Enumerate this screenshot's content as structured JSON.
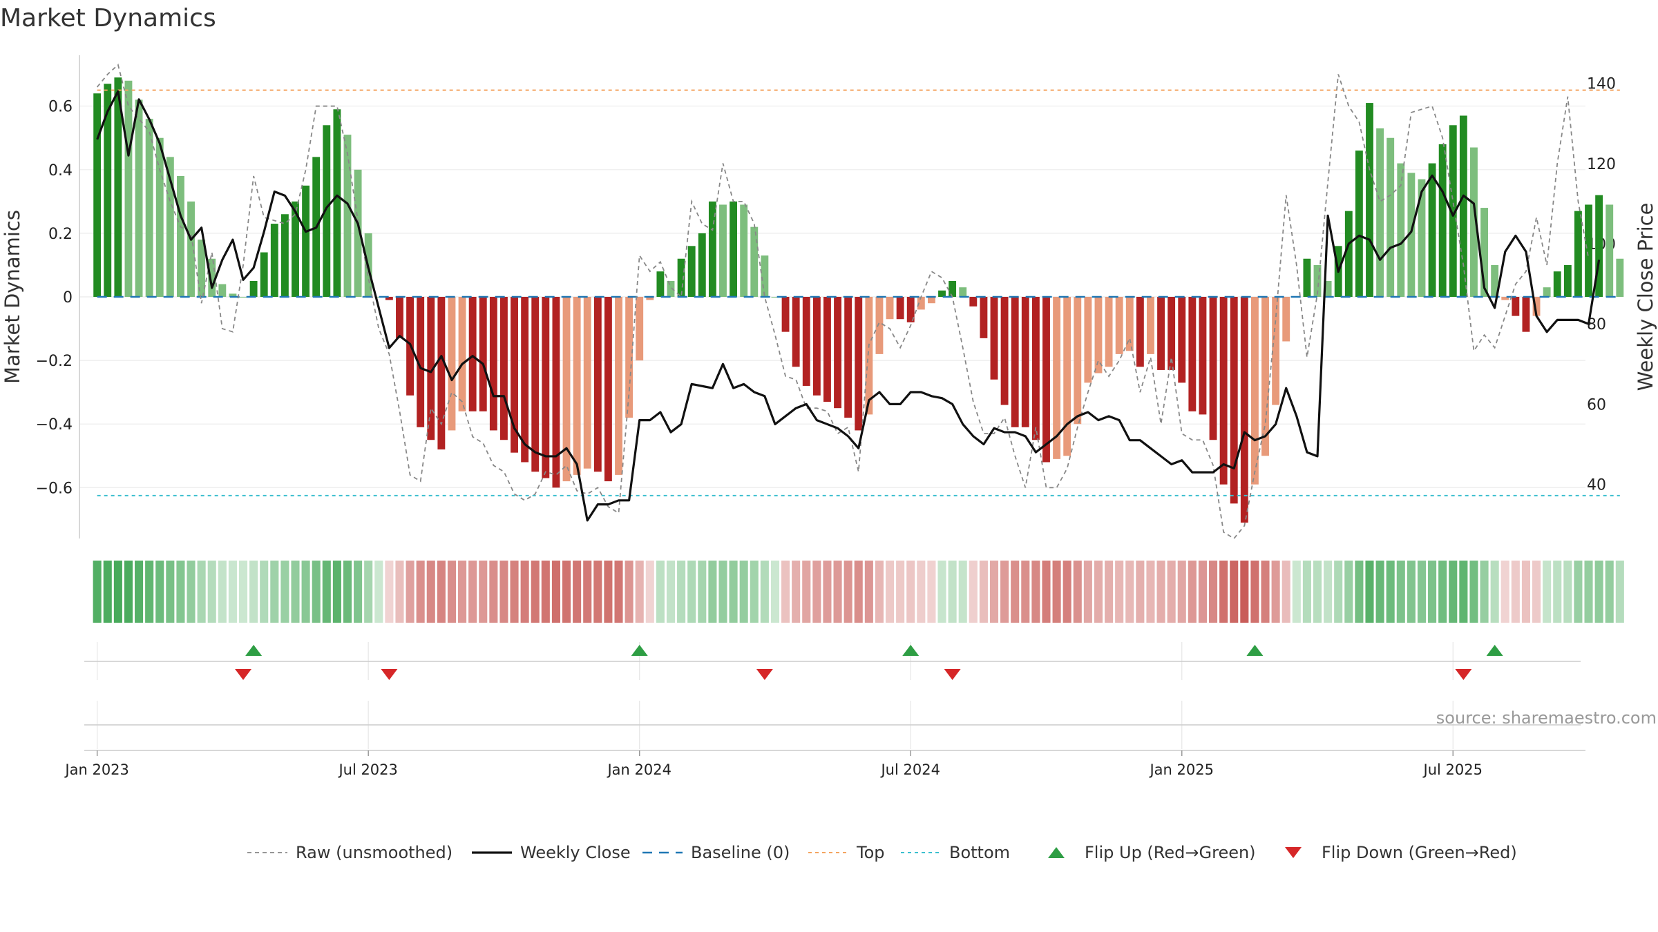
{
  "page_title": "Market Dynamics",
  "source_text": "source: sharemaestro.com",
  "colors": {
    "green_strong": "#228B22",
    "green_light": "#7DBE7D",
    "red_strong": "#B22222",
    "red_light": "#E89A7A",
    "raw": "#888888",
    "close": "#111111",
    "baseline": "#1F77B4",
    "top": "#F4A460",
    "bottom": "#3BBFCF",
    "flip_up": "#2E9E44",
    "flip_down": "#D62728"
  },
  "chart_data": {
    "type": "bar",
    "title": "Market Dynamics",
    "ylabel": "Market Dynamics",
    "y2label": "Weekly Close Price",
    "ylim": [
      -0.76,
      0.76
    ],
    "y2lim": [
      26.5,
      147
    ],
    "xlim": [
      -1.7,
      142.7
    ],
    "yticks": [
      0.6,
      0.4,
      0.2,
      0,
      -0.2,
      -0.4,
      -0.6
    ],
    "ytick_labels": [
      "0.6",
      "0.4",
      "0.2",
      "0",
      "−0.2",
      "−0.4",
      "−0.6"
    ],
    "y2ticks": [
      140,
      120,
      100,
      80,
      60,
      40
    ],
    "x_tick_weeks": [
      0,
      26,
      52,
      78,
      104,
      130
    ],
    "x_tick_labels": [
      "Jan 2023",
      "Jul 2023",
      "Jan 2024",
      "Jul 2024",
      "Jan 2025",
      "Jul 2025"
    ],
    "top_level": 0.65,
    "bottom_level": -0.625,
    "baseline": 0,
    "series": [
      {
        "name": "Market Dynamics",
        "type": "bar",
        "values": [
          0.64,
          0.67,
          0.69,
          0.68,
          0.62,
          0.56,
          0.5,
          0.44,
          0.38,
          0.3,
          0.18,
          0.12,
          0.04,
          0.01,
          0,
          0.05,
          0.14,
          0.23,
          0.26,
          0.3,
          0.35,
          0.44,
          0.54,
          0.59,
          0.51,
          0.4,
          0.2,
          0,
          -0.01,
          -0.13,
          -0.31,
          -0.41,
          -0.45,
          -0.48,
          -0.42,
          -0.36,
          -0.36,
          -0.36,
          -0.42,
          -0.45,
          -0.49,
          -0.52,
          -0.55,
          -0.57,
          -0.6,
          -0.58,
          -0.56,
          -0.54,
          -0.55,
          -0.58,
          -0.56,
          -0.38,
          -0.2,
          -0.01,
          0.08,
          0.05,
          0.12,
          0.16,
          0.2,
          0.3,
          0.29,
          0.3,
          0.29,
          0.22,
          0.13,
          0,
          -0.11,
          -0.22,
          -0.28,
          -0.31,
          -0.33,
          -0.35,
          -0.38,
          -0.42,
          -0.37,
          -0.18,
          -0.07,
          -0.07,
          -0.08,
          -0.04,
          -0.02,
          0.02,
          0.05,
          0.03,
          -0.03,
          -0.13,
          -0.26,
          -0.34,
          -0.41,
          -0.41,
          -0.45,
          -0.52,
          -0.51,
          -0.5,
          -0.4,
          -0.27,
          -0.24,
          -0.22,
          -0.18,
          -0.17,
          -0.22,
          -0.18,
          -0.23,
          -0.23,
          -0.27,
          -0.36,
          -0.37,
          -0.45,
          -0.59,
          -0.65,
          -0.71,
          -0.59,
          -0.5,
          -0.34,
          -0.14,
          0,
          0.12,
          0.1,
          0.05,
          0.16,
          0.27,
          0.46,
          0.61,
          0.53,
          0.5,
          0.42,
          0.39,
          0.37,
          0.42,
          0.48,
          0.54,
          0.57,
          0.47,
          0.28,
          0.1,
          -0.01,
          -0.06,
          -0.11,
          -0.06,
          0.03,
          0.08,
          0.1,
          0.27,
          0.29,
          0.32,
          0.29,
          0.12
        ]
      },
      {
        "name": "Raw (unsmoothed)",
        "type": "line",
        "values": [
          0.66,
          0.7,
          0.73,
          0.6,
          0.56,
          0.52,
          0.4,
          0.3,
          0.22,
          0.2,
          -0.02,
          0.14,
          -0.1,
          -0.11,
          0.1,
          0.38,
          0.25,
          0.24,
          0.23,
          0.26,
          0.4,
          0.6,
          0.6,
          0.6,
          0.45,
          0.24,
          0.06,
          -0.1,
          -0.18,
          -0.36,
          -0.56,
          -0.58,
          -0.35,
          -0.4,
          -0.3,
          -0.33,
          -0.44,
          -0.46,
          -0.53,
          -0.55,
          -0.62,
          -0.64,
          -0.62,
          -0.55,
          -0.56,
          -0.53,
          -0.61,
          -0.62,
          -0.6,
          -0.66,
          -0.68,
          -0.3,
          0.13,
          0.08,
          0.11,
          0.03,
          0.0,
          0.3,
          0.23,
          0.21,
          0.42,
          0.3,
          0.3,
          0.23,
          0.0,
          -0.12,
          -0.25,
          -0.26,
          -0.35,
          -0.35,
          -0.36,
          -0.43,
          -0.41,
          -0.55,
          -0.15,
          -0.08,
          -0.1,
          -0.16,
          -0.09,
          0.0,
          0.08,
          0.06,
          0.0,
          -0.16,
          -0.33,
          -0.43,
          -0.43,
          -0.38,
          -0.5,
          -0.6,
          -0.41,
          -0.6,
          -0.6,
          -0.54,
          -0.41,
          -0.3,
          -0.2,
          -0.25,
          -0.2,
          -0.13,
          -0.3,
          -0.19,
          -0.4,
          -0.19,
          -0.43,
          -0.45,
          -0.45,
          -0.53,
          -0.74,
          -0.76,
          -0.72,
          -0.55,
          -0.4,
          -0.07,
          0.32,
          0.1,
          -0.19,
          0.01,
          0.36,
          0.7,
          0.6,
          0.55,
          0.4,
          0.3,
          0.32,
          0.35,
          0.58,
          0.59,
          0.6,
          0.5,
          0.3,
          0.1,
          -0.17,
          -0.12,
          -0.16,
          -0.06,
          0.04,
          0.08,
          0.25,
          0.1,
          0.42,
          0.63,
          0.3,
          0.12
        ]
      },
      {
        "name": "Weekly Close",
        "type": "line",
        "axis": "right",
        "values": [
          126,
          133,
          138,
          122,
          136,
          131,
          125,
          116,
          107,
          101,
          104,
          89,
          96,
          101,
          91,
          94,
          103,
          113,
          112,
          108,
          103,
          104,
          109,
          112,
          110,
          105,
          94,
          84,
          74,
          77,
          75,
          69,
          68,
          72,
          66,
          70,
          72,
          70,
          62,
          62,
          54,
          50,
          48,
          47,
          47,
          49,
          45,
          31,
          35,
          35,
          36,
          36,
          56,
          56,
          58,
          53,
          55,
          65,
          64.5,
          64,
          70,
          64,
          65,
          63,
          62,
          55,
          57,
          59,
          60,
          56,
          55,
          54,
          52,
          49,
          61,
          63,
          60,
          60,
          63,
          63,
          62,
          61.5,
          60,
          55,
          52,
          50,
          54,
          53,
          53,
          52,
          48,
          50,
          52,
          55,
          57,
          58,
          56,
          57,
          56,
          51,
          51,
          49,
          47,
          45,
          46,
          43,
          43,
          43,
          45,
          44,
          53,
          51,
          52,
          55,
          64,
          57,
          48,
          47,
          107,
          93,
          100,
          102,
          101,
          96,
          99,
          100,
          103,
          113,
          117,
          113,
          107,
          112,
          110,
          89,
          84,
          98,
          102,
          98,
          82,
          78,
          81,
          81,
          81,
          80,
          96
        ]
      },
      {
        "name": "Baseline (0)",
        "type": "line"
      },
      {
        "name": "Top",
        "type": "line"
      },
      {
        "name": "Bottom",
        "type": "line"
      },
      {
        "name": "Flip Up (Red→Green)",
        "type": "marker",
        "weeks": [
          15,
          52,
          78,
          111,
          134
        ]
      },
      {
        "name": "Flip Down (Green→Red)",
        "type": "marker",
        "weeks": [
          14,
          28,
          64,
          82,
          131
        ]
      }
    ],
    "legend": {
      "placement": "bottom-center",
      "entries": [
        {
          "label": "Raw (unsmoothed)",
          "style": "raw"
        },
        {
          "label": "Weekly Close",
          "style": "close"
        },
        {
          "label": "Baseline (0)",
          "style": "baseline"
        },
        {
          "label": "Top",
          "style": "top"
        },
        {
          "label": "Bottom",
          "style": "bottom"
        },
        {
          "label": "Flip Up (Red→Green)",
          "style": "flip_up"
        },
        {
          "label": "Flip Down (Green→Red)",
          "style": "flip_down"
        }
      ]
    }
  }
}
